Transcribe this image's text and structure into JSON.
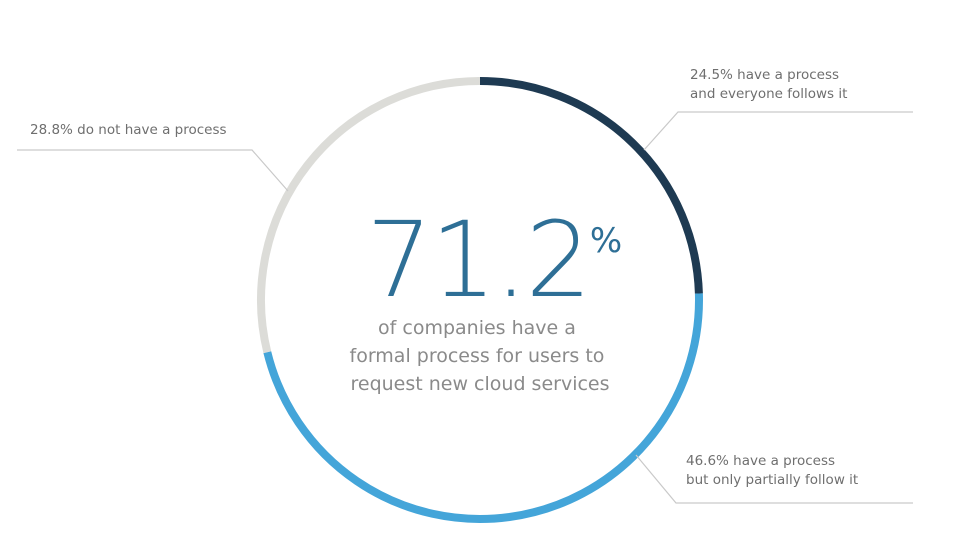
{
  "colors": {
    "background": "#ffffff",
    "headline": "#2e6f96",
    "caption": "#8a8a8a",
    "label": "#6f6f6f",
    "leader": "#c9c9c9"
  },
  "center": {
    "value": "71.2",
    "unit": "%",
    "caption_lines": [
      "of companies have a",
      "formal process for users to",
      "request new cloud services"
    ]
  },
  "chart_data": {
    "type": "pie",
    "variant": "donut",
    "start_angle_deg": 0,
    "direction": "clockwise",
    "segments": [
      {
        "value": 24.5,
        "color": "#1e3a52",
        "label_lines": [
          "24.5% have a process",
          "and everyone follows it"
        ]
      },
      {
        "value": 46.6,
        "color": "#44a5d9",
        "label_lines": [
          "46.6%  have a process",
          "but only partially follow it"
        ]
      },
      {
        "value": 28.8,
        "color": "#dcdcd8",
        "label_lines": [
          "28.8% do not have a process"
        ]
      }
    ]
  }
}
